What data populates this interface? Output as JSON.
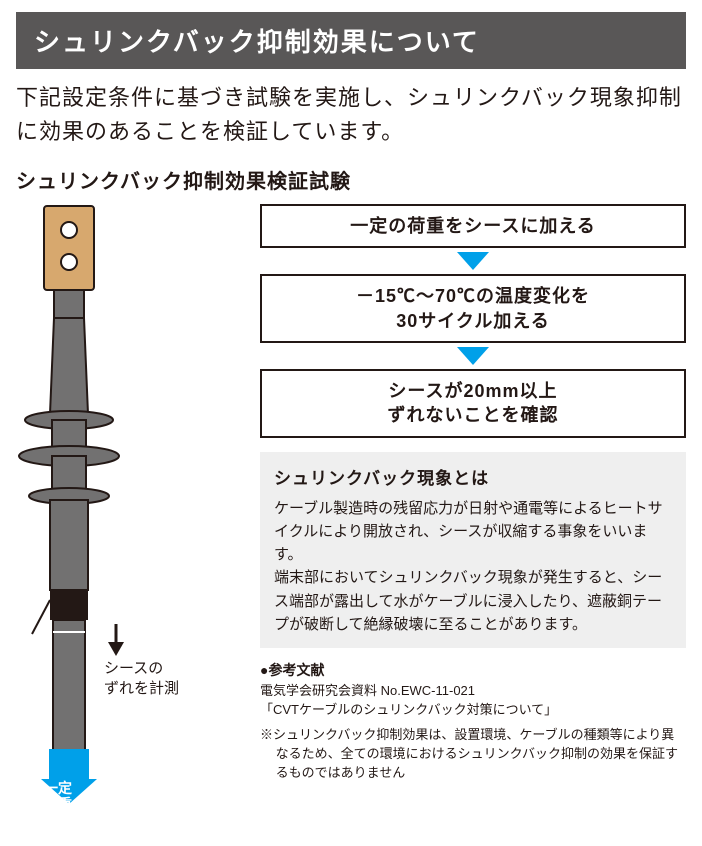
{
  "header": "シュリンクバック抑制効果について",
  "intro": "下記設定条件に基づき試験を実施し、シュリンクバック現象抑制に効果のあることを検証しています。",
  "subheader": "シュリンクバック抑制効果検証試験",
  "steps": [
    "一定の荷重をシースに加える",
    "－15℃～70℃の温度変化を\n30サイクル加える",
    "シースが20mm以上\nずれないことを確認"
  ],
  "info": {
    "title": "シュリンクバック現象とは",
    "body": "ケーブル製造時の残留応力が日射や通電等によるヒートサイクルにより開放され、シースが収縮する事象をいいます。\n端末部においてシュリンクバック現象が発生すると、シース端部が露出して水がケーブルに浸入したり、遮蔽銅テープが破断して絶縁破壊に至ることがあります。"
  },
  "reference": {
    "title": "●参考文献",
    "body": "電気学会研究会資料 No.EWC-11-021\n「CVTケーブルのシュリンクバック対策について」"
  },
  "note": "※シュリンクバック抑制効果は、設置環境、ケーブルの種類等により異なるため、全ての環境におけるシュリンクバック抑制の効果を保証するものではありません",
  "diagram": {
    "measure_label": "シースの\nずれを計測",
    "load_label": "一定\n荷重",
    "colors": {
      "lug": "#d7a86e",
      "body": "#727171",
      "body_edge": "#231815",
      "sheath_band": "#231815",
      "arrow_cyan": "#00a0e9",
      "measure_arrow": "#231815",
      "bg": "#ffffff"
    }
  },
  "style": {
    "header_bg": "#595757",
    "header_fg": "#ffffff",
    "text": "#231815",
    "infobox_bg": "#efefef",
    "border": "#231815",
    "arrow_cyan": "#00a0e9"
  }
}
